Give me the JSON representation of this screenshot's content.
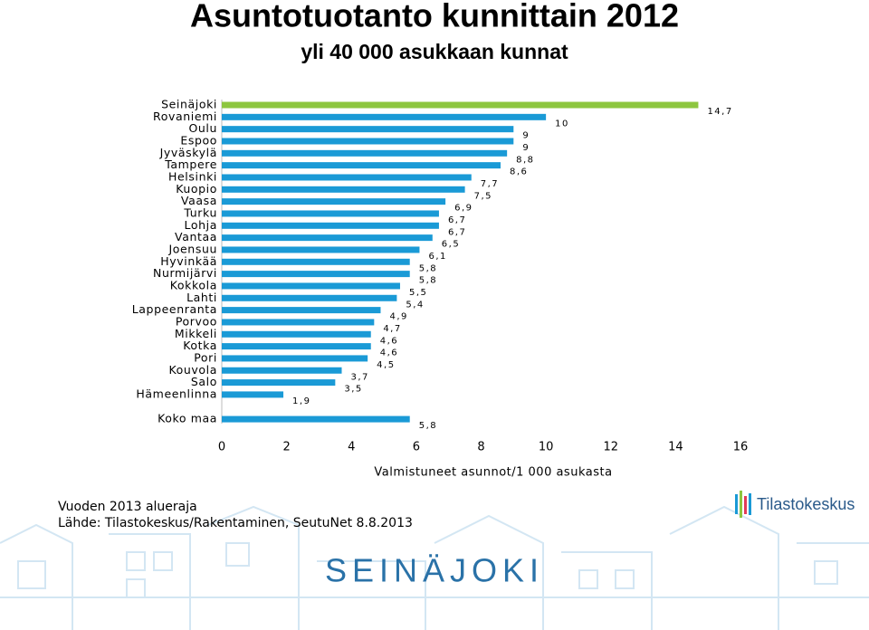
{
  "chart_data": {
    "type": "hbar",
    "title": "Asuntotuotanto kunnittain 2012",
    "subtitle": "yli 40 000 asukkaan kunnat",
    "x_label": "Valmistuneet asunnot/1 000 asukasta",
    "categories": [
      "Seinäjoki",
      "Rovaniemi",
      "Oulu",
      "Espoo",
      "Jyväskylä",
      "Tampere",
      "Helsinki",
      "Kuopio",
      "Vaasa",
      "Turku",
      "Lohja",
      "Vantaa",
      "Joensuu",
      "Hyvinkää",
      "Nurmijärvi",
      "Kokkola",
      "Lahti",
      "Lappeenranta",
      "Porvoo",
      "Mikkeli",
      "Kotka",
      "Pori",
      "Kouvola",
      "Salo",
      "Hämeenlinna"
    ],
    "values": [
      14.7,
      10,
      9,
      9,
      8.8,
      8.6,
      7.7,
      7.5,
      6.9,
      6.7,
      6.7,
      6.5,
      6.1,
      5.8,
      5.8,
      5.5,
      5.4,
      4.9,
      4.7,
      4.6,
      4.6,
      4.5,
      3.7,
      3.5,
      1.9
    ],
    "value_labels": [
      "14,7",
      "10",
      "9",
      "9",
      "8,8",
      "8,6",
      "7,7",
      "7,5",
      "6,9",
      "6,7",
      "6,7",
      "6,5",
      "6,1",
      "5,8",
      "5,8",
      "5,5",
      "5,4",
      "4,9",
      "4,7",
      "4,6",
      "4,6",
      "4,5",
      "3,7",
      "3,5",
      "1,9"
    ],
    "colors": [
      "#8dc63f",
      "#1a9ad6",
      "#1a9ad6",
      "#1a9ad6",
      "#1a9ad6",
      "#1a9ad6",
      "#1a9ad6",
      "#1a9ad6",
      "#1a9ad6",
      "#1a9ad6",
      "#1a9ad6",
      "#1a9ad6",
      "#1a9ad6",
      "#1a9ad6",
      "#1a9ad6",
      "#1a9ad6",
      "#1a9ad6",
      "#1a9ad6",
      "#1a9ad6",
      "#1a9ad6",
      "#1a9ad6",
      "#1a9ad6",
      "#1a9ad6",
      "#1a9ad6",
      "#1a9ad6"
    ],
    "total": {
      "category": "Koko maa",
      "value": 5.8,
      "value_label": "5,8",
      "color": "#1a9ad6"
    },
    "xlim": [
      0,
      16
    ],
    "xticks": [
      0,
      2,
      4,
      6,
      8,
      10,
      12,
      14,
      16
    ],
    "notes": [
      "Vuoden 2013 alueraja",
      "Lähde: Tilastokeskus/Rakentaminen, SeutuNet 8.8.2013"
    ]
  },
  "logo": "Tilastokeskus",
  "banner": "SEINÄJOKI"
}
